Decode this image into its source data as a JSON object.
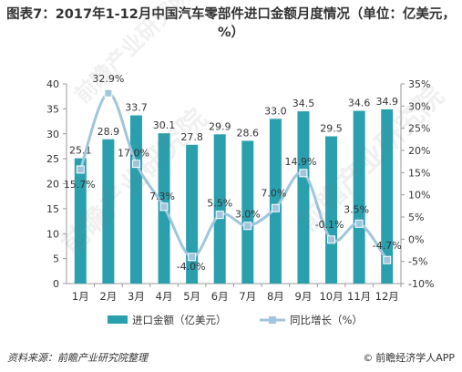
{
  "title": "图表7：2017年1-12月中国汽车零部件进口金额月度情况（单位：亿美元，%）",
  "source": "资料来源：前瞻产业研究院整理",
  "app_credit": "前瞻经济学人APP",
  "copyright_symbol": "©",
  "watermark_text": "前瞻产业研究院",
  "colors": {
    "bar": "#2aa0ae",
    "line": "#9fc6dd",
    "marker": "#9fc6dd",
    "axis": "#999999",
    "text": "#333333"
  },
  "chart_data": {
    "type": "bar",
    "categories": [
      "1月",
      "2月",
      "3月",
      "4月",
      "5月",
      "6月",
      "7月",
      "8月",
      "9月",
      "10月",
      "11月",
      "12月"
    ],
    "series": [
      {
        "name": "进口金额（亿美元）",
        "type": "bar",
        "axis": "left",
        "values": [
          25.1,
          28.9,
          33.7,
          30.1,
          27.8,
          29.9,
          28.6,
          33.0,
          34.5,
          29.5,
          34.6,
          34.9
        ],
        "labels": [
          "25.1",
          "28.9",
          "33.7",
          "30.1",
          "27.8",
          "29.9",
          "28.6",
          "33.0",
          "34.5",
          "29.5",
          "34.6",
          "34.9"
        ]
      },
      {
        "name": "同比增长（%）",
        "type": "line",
        "axis": "right",
        "values": [
          15.7,
          32.9,
          17.0,
          7.3,
          -4.0,
          5.5,
          3.0,
          7.0,
          14.9,
          -0.1,
          3.5,
          -4.7
        ],
        "labels": [
          "15.7%",
          "32.9%",
          "17.0%",
          "7.3%",
          "-4.0%",
          "5.5%",
          "3.0%",
          "7.0%",
          "14.9%",
          "-0.1%",
          "3.5%",
          "-4.7%"
        ]
      }
    ],
    "y_left": {
      "min": 0,
      "max": 40,
      "step": 5,
      "ticks": [
        "0",
        "5",
        "10",
        "15",
        "20",
        "25",
        "30",
        "35",
        "40"
      ]
    },
    "y_right": {
      "min": -10,
      "max": 35,
      "step": 5,
      "ticks": [
        "-10%",
        "-5%",
        "0%",
        "5%",
        "10%",
        "15%",
        "20%",
        "25%",
        "30%",
        "35%"
      ]
    },
    "grid": false,
    "legend_position": "bottom"
  }
}
